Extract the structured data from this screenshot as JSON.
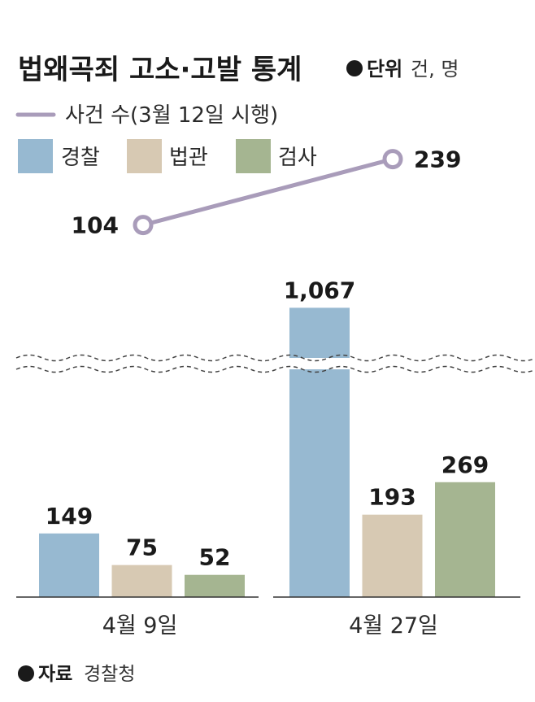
{
  "header": {
    "title": "법왜곡죄 고소·고발 통계",
    "unit_label": "단위",
    "unit_value": "건, 명"
  },
  "legend": {
    "line_label": "사건 수(3월 12일 시행)",
    "bar_labels": [
      "경찰",
      "법관",
      "검사"
    ]
  },
  "source": {
    "label": "자료",
    "value": "경찰청"
  },
  "colors": {
    "police": "#97b9d1",
    "judge": "#d7c9b3",
    "prosecutor": "#a5b591",
    "line": "#a99cba",
    "axis": "#333333",
    "text": "#1a1a1a"
  },
  "chart_data": {
    "type": "bar",
    "title": "법왜곡죄 고소·고발 통계",
    "unit": "건, 명",
    "categories": [
      "4월 9일",
      "4월 27일"
    ],
    "series": [
      {
        "name": "경찰",
        "values": [
          149,
          1067
        ],
        "labels": [
          "149",
          "1,067"
        ],
        "color": "#97b9d1"
      },
      {
        "name": "법관",
        "values": [
          75,
          193
        ],
        "labels": [
          "75",
          "193"
        ],
        "color": "#d7c9b3"
      },
      {
        "name": "검사",
        "values": [
          52,
          269
        ],
        "labels": [
          "52",
          "269"
        ],
        "color": "#a5b591"
      }
    ],
    "line_series": {
      "name": "사건 수(3월 12일 시행)",
      "values": [
        104,
        239
      ],
      "labels": [
        "104",
        "239"
      ],
      "color": "#a99cba"
    },
    "axis_break": true,
    "grid": false,
    "legend_position": "top-left"
  }
}
